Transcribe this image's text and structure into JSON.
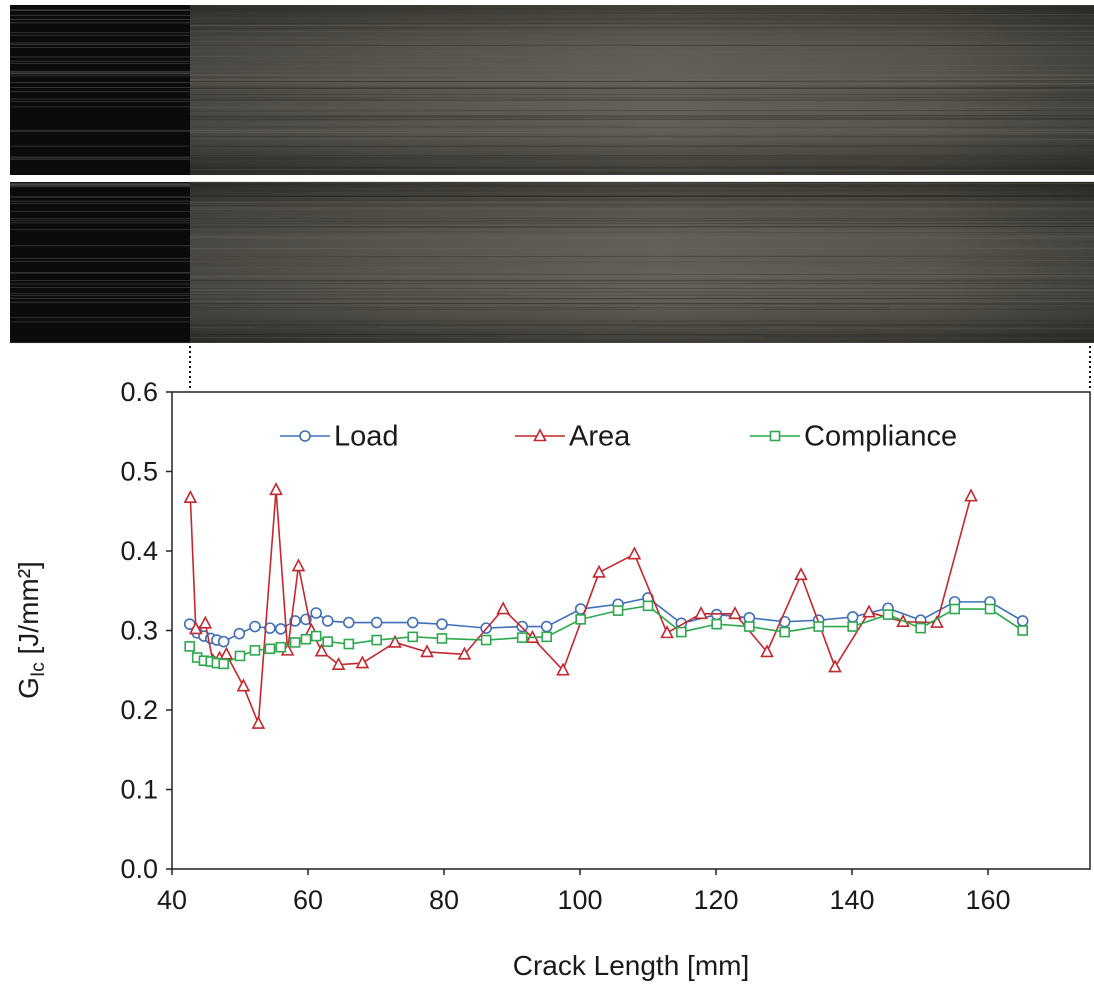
{
  "chart_data": {
    "type": "line",
    "x_label": "Crack Length [mm]",
    "y_label": [
      "G",
      "Ic",
      " [J/mm²]"
    ],
    "xlim": [
      40,
      175
    ],
    "ylim": [
      0,
      0.6
    ],
    "xticks": [
      40,
      60,
      80,
      100,
      120,
      140,
      160
    ],
    "yticks": [
      {
        "value": 0,
        "label": "0.0"
      },
      0.1,
      0.2,
      0.3,
      0.4,
      0.5,
      0.6
    ],
    "series": [
      {
        "name": "Load",
        "color": "#3f6fb8",
        "marker": "circle",
        "x": [
          42.6,
          43.7,
          44.7,
          45.7,
          46.6,
          47.6,
          49.9,
          52.2,
          54.4,
          56.0,
          58.1,
          59.7,
          61.2,
          62.9,
          66.0,
          70.1,
          75.4,
          79.7,
          86.2,
          91.5,
          95.1,
          100.1,
          105.6,
          110.0,
          114.9,
          120.1,
          124.9,
          130.1,
          135.1,
          140.1,
          145.3,
          150.1,
          155.1,
          160.3,
          165.1
        ],
        "values": [
          0.308,
          0.297,
          0.293,
          0.29,
          0.288,
          0.286,
          0.296,
          0.305,
          0.303,
          0.302,
          0.312,
          0.314,
          0.322,
          0.312,
          0.31,
          0.31,
          0.31,
          0.308,
          0.303,
          0.305,
          0.305,
          0.327,
          0.333,
          0.341,
          0.309,
          0.32,
          0.316,
          0.311,
          0.313,
          0.317,
          0.328,
          0.313,
          0.336,
          0.336,
          0.312
        ]
      },
      {
        "name": "Area",
        "color": "#c3282e",
        "marker": "triangle",
        "x": [
          42.7,
          43.5,
          44.9,
          46.0,
          47.0,
          48.0,
          50.5,
          52.7,
          55.3,
          57.0,
          58.6,
          60.5,
          62.0,
          64.5,
          68.0,
          72.8,
          77.5,
          83.0,
          88.7,
          93.0,
          97.5,
          102.8,
          108.0,
          112.8,
          117.8,
          122.8,
          127.5,
          132.5,
          137.5,
          142.5,
          147.5,
          152.5,
          157.5
        ],
        "values": [
          0.467,
          0.302,
          0.309,
          0.262,
          0.265,
          0.27,
          0.23,
          0.183,
          0.477,
          0.275,
          0.381,
          0.3,
          0.274,
          0.257,
          0.259,
          0.285,
          0.273,
          0.27,
          0.327,
          0.291,
          0.25,
          0.373,
          0.396,
          0.297,
          0.321,
          0.321,
          0.273,
          0.37,
          0.254,
          0.323,
          0.311,
          0.31,
          0.469
        ]
      },
      {
        "name": "Compliance",
        "color": "#2ea84e",
        "marker": "square",
        "x": [
          42.6,
          43.7,
          44.7,
          45.7,
          46.6,
          47.6,
          50.0,
          52.2,
          54.4,
          56.0,
          58.1,
          59.7,
          61.2,
          62.9,
          66.0,
          70.1,
          75.4,
          79.7,
          86.2,
          91.5,
          95.1,
          100.1,
          105.6,
          110.0,
          114.9,
          120.1,
          124.9,
          130.1,
          135.1,
          140.1,
          145.3,
          150.1,
          155.1,
          160.3,
          165.1
        ],
        "values": [
          0.28,
          0.266,
          0.262,
          0.261,
          0.259,
          0.258,
          0.268,
          0.275,
          0.277,
          0.279,
          0.285,
          0.289,
          0.293,
          0.286,
          0.283,
          0.288,
          0.292,
          0.29,
          0.288,
          0.291,
          0.292,
          0.314,
          0.325,
          0.331,
          0.298,
          0.308,
          0.305,
          0.298,
          0.305,
          0.305,
          0.32,
          0.303,
          0.327,
          0.327,
          0.3
        ]
      }
    ]
  }
}
